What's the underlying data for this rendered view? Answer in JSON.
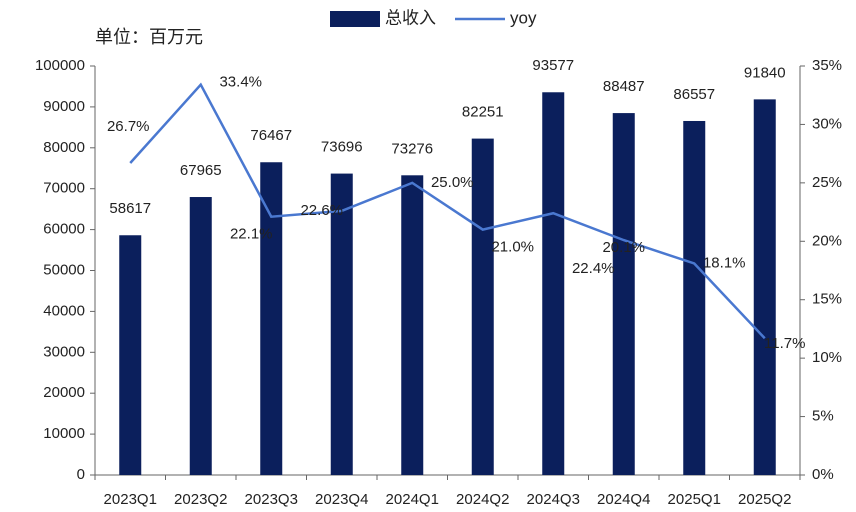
{
  "chart_data": {
    "type": "bar",
    "unit": "单位：百万元",
    "categories": [
      "2023Q1",
      "2023Q2",
      "2023Q3",
      "2023Q4",
      "2024Q1",
      "2024Q2",
      "2024Q3",
      "2024Q4",
      "2025Q1",
      "2025Q2"
    ],
    "series": [
      {
        "name": "总收入",
        "type": "bar",
        "color": "#0b1f5c",
        "values": [
          58617,
          67965,
          76467,
          73696,
          73276,
          82251,
          93577,
          88487,
          86557,
          91840
        ]
      },
      {
        "name": "yoy",
        "type": "line",
        "axis": "y2",
        "color": "#4a78d0",
        "values": [
          26.7,
          33.4,
          22.1,
          22.6,
          25.0,
          21.0,
          22.4,
          20.1,
          18.1,
          11.7
        ],
        "value_labels": [
          "26.7%",
          "33.4%",
          "22.1%",
          "22.6%",
          "25.0%",
          "21.0%",
          "22.4%",
          "20.1%",
          "18.1%",
          "11.7%"
        ]
      }
    ],
    "ylim": [
      0,
      100000
    ],
    "yticks": [
      0,
      10000,
      20000,
      30000,
      40000,
      50000,
      60000,
      70000,
      80000,
      90000,
      100000
    ],
    "y2lim": [
      0,
      35
    ],
    "y2ticks": [
      {
        "value": 0,
        "label": "0%"
      },
      {
        "value": 5,
        "label": "5%"
      },
      {
        "value": 10,
        "label": "10%"
      },
      {
        "value": 15,
        "label": "15%"
      },
      {
        "value": 20,
        "label": "20%"
      },
      {
        "value": 25,
        "label": "25%"
      },
      {
        "value": 30,
        "label": "30%"
      },
      {
        "value": 35,
        "label": "35%"
      }
    ],
    "legend": "top"
  }
}
